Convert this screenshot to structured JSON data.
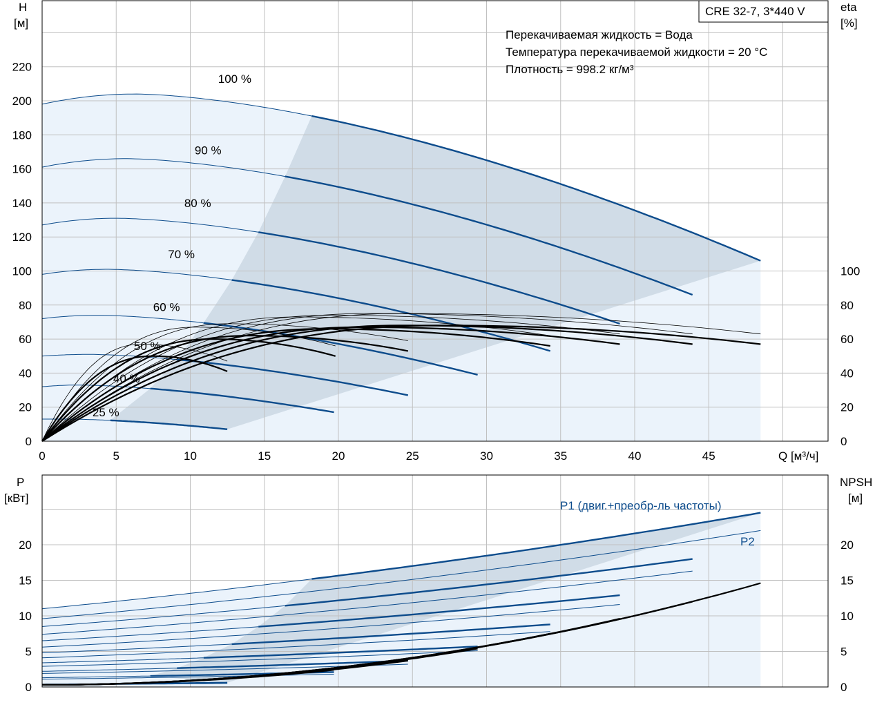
{
  "chart_data": [
    {
      "type": "line",
      "title": "CRE 32-7, 3*440 V",
      "notes": [
        "Перекачиваемая жидкость = Вода",
        "Температура перекачиваемой жидкости = 20 °C",
        "Плотность = 998.2 кг/м³"
      ],
      "ylabel_left": [
        "H",
        "[м]"
      ],
      "ylabel_right": [
        "eta",
        "[%]"
      ],
      "xlabel": "Q [м³/ч]",
      "xlim": [
        0,
        50
      ],
      "ylim": [
        0,
        240
      ],
      "eta_ylim": [
        0,
        100
      ],
      "xticks": [
        "0",
        "5",
        "10",
        "15",
        "20",
        "25",
        "30",
        "35",
        "40",
        "45"
      ],
      "yticks": [
        "0",
        "20",
        "40",
        "60",
        "80",
        "100",
        "120",
        "140",
        "160",
        "180",
        "200",
        "220"
      ],
      "eta_ticks": [
        "0",
        "20",
        "40",
        "60",
        "80",
        "100"
      ],
      "grid": true,
      "speed_curves": [
        {
          "label": "100 %",
          "qmax": 48.5,
          "h0": 198,
          "hpeak": 204,
          "qpeak": 6.3,
          "hend": 106,
          "op_start": 18.2
        },
        {
          "label": "90 %",
          "qmax": 43.9,
          "h0": 161,
          "hpeak": 166,
          "qpeak": 5.7,
          "hend": 86,
          "op_start": 16.4
        },
        {
          "label": "80 %",
          "qmax": 39.0,
          "h0": 127,
          "hpeak": 131,
          "qpeak": 5.0,
          "hend": 69,
          "op_start": 14.6
        },
        {
          "label": "70 %",
          "qmax": 34.3,
          "h0": 98,
          "hpeak": 101,
          "qpeak": 4.4,
          "hend": 53,
          "op_start": 12.8
        },
        {
          "label": "60 %",
          "qmax": 29.4,
          "h0": 72,
          "hpeak": 74,
          "qpeak": 3.8,
          "hend": 39,
          "op_start": 10.9
        },
        {
          "label": "50 %",
          "qmax": 24.7,
          "h0": 50,
          "hpeak": 51,
          "qpeak": 3.2,
          "hend": 27,
          "op_start": 9.1
        },
        {
          "label": "40 %",
          "qmax": 19.7,
          "h0": 32,
          "hpeak": 33,
          "qpeak": 2.5,
          "hend": 17,
          "op_start": 7.3
        },
        {
          "label": "25 %",
          "qmax": 12.5,
          "h0": 13,
          "hpeak": 13,
          "qpeak": 1.6,
          "hend": 7,
          "op_start": 4.6
        }
      ],
      "efficiency_curves": [
        {
          "qmax": 48.5,
          "etapeak": 68,
          "qpeak": 27.0,
          "etaend": 57
        },
        {
          "qmax": 43.9,
          "etapeak": 68,
          "qpeak": 24.4,
          "etaend": 57
        },
        {
          "qmax": 39.0,
          "etapeak": 67,
          "qpeak": 21.7,
          "etaend": 57
        },
        {
          "qmax": 34.3,
          "etapeak": 66,
          "qpeak": 19.0,
          "etaend": 56
        },
        {
          "qmax": 24.7,
          "etapeak": 62,
          "qpeak": 14.0,
          "etaend": 53
        },
        {
          "qmax": 19.8,
          "etapeak": 60,
          "qpeak": 11.5,
          "etaend": 50
        },
        {
          "qmax": 12.5,
          "etapeak": 50,
          "qpeak": 7.5,
          "etaend": 41
        }
      ]
    },
    {
      "type": "line",
      "ylabel_left": [
        "P",
        "[кВт]"
      ],
      "ylabel_right": [
        "NPSH",
        "[м]"
      ],
      "xlim": [
        0,
        50
      ],
      "ylim": [
        0,
        25
      ],
      "npsh_ylim": [
        0,
        25
      ],
      "yticks": [
        "0",
        "5",
        "10",
        "15",
        "20"
      ],
      "npsh_ticks": [
        "0",
        "5",
        "10",
        "15",
        "20"
      ],
      "series_labels": {
        "p1": "P1 (двиг.+преобр-ль частоты)",
        "p2": "P2"
      },
      "p1_curves": [
        {
          "qmax": 48.5,
          "p0": 11.0,
          "pend": 24.5
        },
        {
          "qmax": 43.9,
          "p0": 8.5,
          "pend": 18.0
        },
        {
          "qmax": 39.0,
          "p0": 6.5,
          "pend": 12.9
        },
        {
          "qmax": 34.3,
          "p0": 4.8,
          "pend": 8.8
        },
        {
          "qmax": 29.4,
          "p0": 3.4,
          "pend": 5.7
        },
        {
          "qmax": 24.7,
          "p0": 2.2,
          "pend": 3.7
        },
        {
          "qmax": 19.7,
          "p0": 1.3,
          "pend": 2.1
        },
        {
          "qmax": 12.5,
          "p0": 0.4,
          "pend": 0.6
        }
      ],
      "p2_curves": [
        {
          "qmax": 48.5,
          "p0": 9.6,
          "pend": 22.0
        },
        {
          "qmax": 43.9,
          "p0": 7.4,
          "pend": 16.3
        },
        {
          "qmax": 39.0,
          "p0": 5.6,
          "pend": 11.6
        },
        {
          "qmax": 34.3,
          "p0": 4.1,
          "pend": 7.8
        },
        {
          "qmax": 29.4,
          "p0": 2.9,
          "pend": 5.1
        },
        {
          "qmax": 24.7,
          "p0": 1.9,
          "pend": 3.2
        },
        {
          "qmax": 19.7,
          "p0": 1.1,
          "pend": 1.8
        },
        {
          "qmax": 12.5,
          "p0": 0.3,
          "pend": 0.5
        }
      ],
      "npsh_curves": [
        {
          "qmax": 48.5,
          "nend": 14.6
        },
        {
          "qmax": 43.9,
          "nend": 12.0
        },
        {
          "qmax": 39.0,
          "nend": 9.6
        },
        {
          "qmax": 34.3,
          "nend": 7.5
        },
        {
          "qmax": 29.4,
          "nend": 5.4
        },
        {
          "qmax": 24.7,
          "nend": 3.7
        },
        {
          "qmax": 19.7,
          "nend": 2.4
        }
      ]
    }
  ]
}
